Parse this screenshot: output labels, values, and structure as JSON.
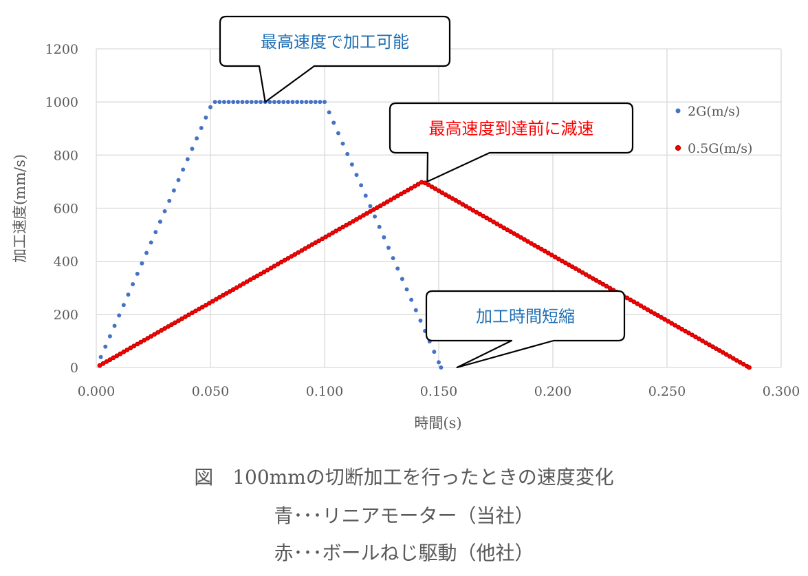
{
  "chart_data": {
    "type": "scatter",
    "xlabel": "時間(s)",
    "ylabel": "加工速度(mm/s)",
    "xlim": [
      0,
      0.3
    ],
    "ylim": [
      0,
      1200
    ],
    "x_ticks": [
      "0.000",
      "0.050",
      "0.100",
      "0.150",
      "0.200",
      "0.250",
      "0.300"
    ],
    "y_ticks": [
      "0",
      "200",
      "400",
      "600",
      "800",
      "1000",
      "1200"
    ],
    "grid": true,
    "legend_position": "right",
    "series": [
      {
        "name": "2G(m/s)",
        "color": "#4472c4",
        "profile": [
          [
            0.0,
            0
          ],
          [
            0.051,
            1000
          ],
          [
            0.1,
            1000
          ],
          [
            0.151,
            0
          ]
        ],
        "sample_step": 0.002
      },
      {
        "name": "0.5G(m/s)",
        "color": "#ff0000",
        "outline": "#c00000",
        "profile": [
          [
            0.0,
            0
          ],
          [
            0.143,
            700
          ],
          [
            0.286,
            0
          ]
        ],
        "sample_step": 0.0015
      }
    ],
    "annotations": [
      {
        "text": "最高速度で加工可能",
        "color": "#1f6fb4",
        "target": [
          0.074,
          1000
        ]
      },
      {
        "text": "最高速度到達前に減速",
        "color": "#ff0000",
        "target": [
          0.145,
          700
        ]
      },
      {
        "text": "加工時間短縮",
        "color": "#1f6fb4",
        "target": [
          0.158,
          0
        ]
      }
    ]
  },
  "caption": {
    "line1": "図　100mmの切断加工を行ったときの速度変化",
    "line2": "青･･･リニアモーター（当社）",
    "line3": "赤･･･ボールねじ駆動（他社）"
  }
}
